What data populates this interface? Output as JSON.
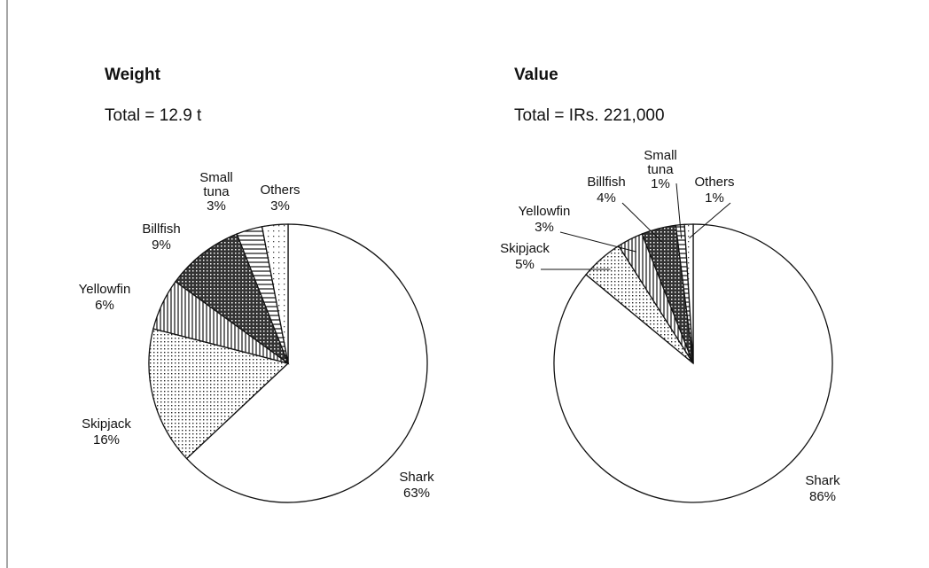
{
  "chart_data": [
    {
      "type": "pie",
      "title": "Weight",
      "subtitle": "Total = 12.9 t",
      "categories": [
        "Shark",
        "Skipjack",
        "Yellowfin",
        "Billfish",
        "Small tuna",
        "Others"
      ],
      "values": [
        63,
        16,
        6,
        9,
        3,
        3
      ],
      "value_labels": [
        "63%",
        "16%",
        "6%",
        "9%",
        "3%",
        "3%"
      ],
      "patterns": [
        "none",
        "dots",
        "vertical",
        "crosshatch",
        "horizontal",
        "sparse-dots"
      ]
    },
    {
      "type": "pie",
      "title": "Value",
      "subtitle": "Total = IRs. 221,000",
      "categories": [
        "Shark",
        "Skipjack",
        "Yellowfin",
        "Billfish",
        "Small tuna",
        "Others"
      ],
      "values": [
        86,
        5,
        3,
        4,
        1,
        1
      ],
      "value_labels": [
        "86%",
        "5%",
        "3%",
        "4%",
        "1%",
        "1%"
      ],
      "patterns": [
        "none",
        "dots",
        "vertical",
        "crosshatch",
        "horizontal",
        "sparse-dots"
      ]
    }
  ]
}
